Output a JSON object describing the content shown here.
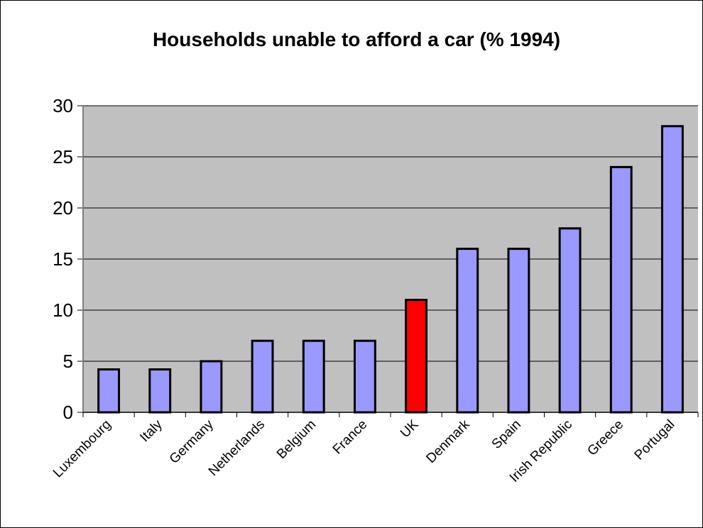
{
  "chart_data": {
    "type": "bar",
    "title": "Households unable to afford a car (% 1994)",
    "xlabel": "",
    "ylabel": "",
    "categories": [
      "Luxembourg",
      "Italy",
      "Germany",
      "Netherlands",
      "Belgium",
      "France",
      "UK",
      "Denmark",
      "Spain",
      "Irish Republic",
      "Greece",
      "Portugal"
    ],
    "values": [
      4.2,
      4.2,
      5,
      7,
      7,
      7,
      11,
      16,
      16,
      18,
      24,
      28
    ],
    "ylim": [
      0,
      30
    ],
    "yticks": [
      0,
      5,
      10,
      15,
      20,
      25,
      30
    ],
    "grid": true,
    "legend": "none",
    "colors": {
      "bar": "#9999ff",
      "highlight_bar": "#ff0000",
      "highlight_category": "UK",
      "plot_background": "#c0c0c0",
      "gridline": "#000000",
      "bar_outline": "#000000"
    }
  }
}
